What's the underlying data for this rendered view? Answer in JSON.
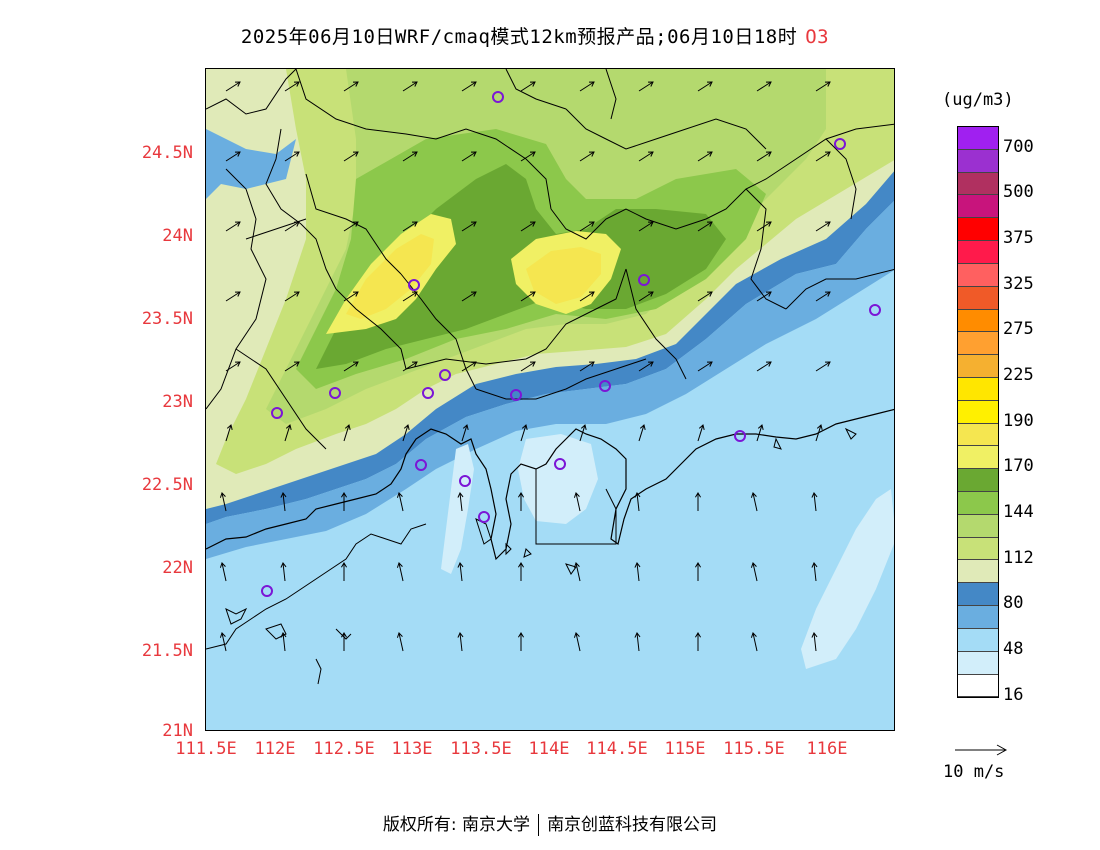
{
  "title": "2025年06月10日WRF/cmaq模式12km预报产品;06月10日18时",
  "species": "O3",
  "unit": "(ug/m3)",
  "lat_labels": [
    "24.5N",
    "24N",
    "23.5N",
    "23N",
    "22.5N",
    "22N",
    "21.5N",
    "21N"
  ],
  "lon_labels": [
    "111.5E",
    "112E",
    "112.5E",
    "113E",
    "113.5E",
    "114E",
    "114.5E",
    "115E",
    "115.5E",
    "116E"
  ],
  "legend": {
    "labels": [
      "700",
      "500",
      "375",
      "325",
      "275",
      "225",
      "190",
      "170",
      "144",
      "112",
      "80",
      "48",
      "16"
    ],
    "colors": [
      "#a020f0",
      "#9b30d0",
      "#b03060",
      "#c8147c",
      "#ff0000",
      "#ff1a4b",
      "#ff6060",
      "#f05a28",
      "#ff8c00",
      "#ffa030",
      "#f5b030",
      "#ffe600",
      "#fff000",
      "#f5e650",
      "#f0f064",
      "#6aa832",
      "#8cc84b",
      "#b4d96e",
      "#c8e178",
      "#e0eab8",
      "#4488c6",
      "#6aaee0",
      "#a4dcf6",
      "#d2eefa",
      "#ffffff"
    ]
  },
  "reference_vector": "10 m/s",
  "footer": {
    "copyright": "版权所有: 南京大学",
    "company": "南京创蓝科技有限公司"
  },
  "map_colors": {
    "ocean": "#a4dcf6",
    "band_48": "#6aaee0",
    "band_64": "#4488c6",
    "band_80": "#e0eab8",
    "band_112": "#c8e178",
    "band_128": "#b4d96e",
    "band_144": "#8cc84b",
    "band_160": "#6aa832",
    "band_170": "#f0f064",
    "band_180": "#f5e650",
    "light_16": "#d2eefa"
  }
}
